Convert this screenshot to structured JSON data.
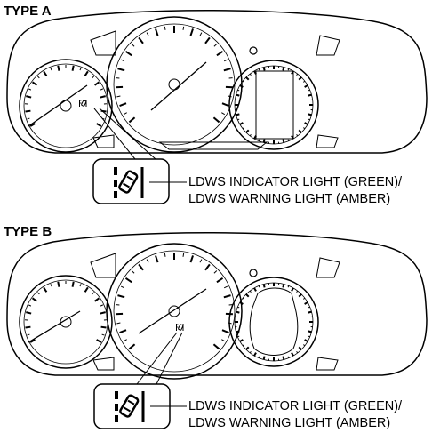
{
  "sections": [
    {
      "heading": "TYPE A",
      "callout": {
        "line1": "LDWS INDICATOR LIGHT (GREEN)/",
        "line2": "LDWS WARNING LIGHT (AMBER)"
      },
      "indicator_location": "left-gauge"
    },
    {
      "heading": "TYPE B",
      "callout": {
        "line1": "LDWS INDICATOR LIGHT (GREEN)/",
        "line2": "LDWS WARNING LIGHT (AMBER)"
      },
      "indicator_location": "center-gauge"
    }
  ],
  "icon": "lane-departure-warning-icon"
}
